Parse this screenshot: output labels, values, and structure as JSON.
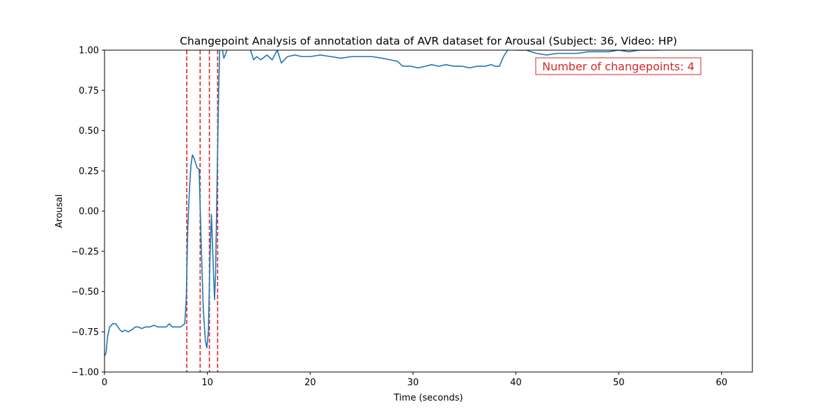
{
  "chart_data": {
    "type": "line",
    "title": "Changepoint Analysis of annotation data of AVR dataset for Arousal (Subject: 36, Video: HP)",
    "xlabel": "Time (seconds)",
    "ylabel": "Arousal",
    "xlim": [
      0,
      63
    ],
    "ylim": [
      -1.0,
      1.0
    ],
    "xticks": [
      0,
      10,
      20,
      30,
      40,
      50,
      60
    ],
    "xtick_labels": [
      "0",
      "10",
      "20",
      "30",
      "40",
      "50",
      "60"
    ],
    "yticks": [
      -1.0,
      -0.75,
      -0.5,
      -0.25,
      0.0,
      0.25,
      0.5,
      0.75,
      1.0
    ],
    "ytick_labels": [
      "−1.00",
      "−0.75",
      "−0.50",
      "−0.25",
      "0.00",
      "0.25",
      "0.50",
      "0.75",
      "1.00"
    ],
    "grid": false,
    "series": [
      {
        "color": "#1f77b4",
        "x": [
          0,
          0.15,
          0.3,
          0.5,
          0.8,
          1.1,
          1.4,
          1.7,
          2.0,
          2.3,
          2.6,
          3.0,
          3.3,
          3.6,
          4.0,
          4.4,
          4.8,
          5.2,
          5.6,
          6.0,
          6.3,
          6.6,
          7.0,
          7.4,
          7.8,
          7.95,
          8.1,
          8.25,
          8.4,
          8.55,
          8.7,
          9.0,
          9.2,
          9.4,
          9.6,
          9.8,
          9.95,
          10.1,
          10.25,
          10.4,
          10.55,
          10.7,
          10.8,
          10.95,
          11.1,
          11.2,
          11.4,
          11.6,
          11.8,
          12.0,
          12.2,
          12.4,
          12.7,
          13.0,
          13.5,
          14.0,
          14.5,
          14.8,
          15.2,
          15.8,
          16.3,
          16.8,
          17.2,
          17.8,
          18.5,
          19.2,
          20.0,
          21.0,
          22.0,
          23.0,
          24.0,
          25.0,
          26.0,
          27.0,
          27.8,
          28.5,
          29.0,
          29.8,
          30.5,
          31.2,
          31.8,
          32.5,
          33.2,
          34.0,
          34.8,
          35.5,
          36.2,
          37.0,
          37.6,
          38.0,
          38.4,
          38.8,
          39.2,
          39.6,
          40.0,
          41.0,
          42.0,
          43.0,
          44.0,
          45.0,
          46.0,
          47.0,
          48.0,
          49.0,
          50.0,
          51.0,
          52.0,
          53.0,
          53.8
        ],
        "y": [
          -0.9,
          -0.88,
          -0.78,
          -0.72,
          -0.7,
          -0.7,
          -0.73,
          -0.75,
          -0.74,
          -0.75,
          -0.74,
          -0.72,
          -0.72,
          -0.73,
          -0.72,
          -0.72,
          -0.71,
          -0.72,
          -0.72,
          -0.72,
          -0.7,
          -0.72,
          -0.72,
          -0.72,
          -0.7,
          -0.55,
          -0.1,
          0.12,
          0.28,
          0.35,
          0.33,
          0.27,
          0.26,
          -0.2,
          -0.6,
          -0.8,
          -0.85,
          -0.75,
          -0.3,
          -0.02,
          -0.3,
          -0.55,
          -0.4,
          0.2,
          0.75,
          1.0,
          1.03,
          0.95,
          0.98,
          1.02,
          1.05,
          1.05,
          1.05,
          1.05,
          1.05,
          1.04,
          0.94,
          0.96,
          0.94,
          0.97,
          0.94,
          1.0,
          0.92,
          0.96,
          0.97,
          0.96,
          0.96,
          0.97,
          0.96,
          0.95,
          0.96,
          0.96,
          0.96,
          0.95,
          0.94,
          0.93,
          0.9,
          0.9,
          0.89,
          0.9,
          0.91,
          0.9,
          0.91,
          0.9,
          0.9,
          0.89,
          0.9,
          0.9,
          0.91,
          0.9,
          0.9,
          0.96,
          1.0,
          1.02,
          1.0,
          1.0,
          0.98,
          0.97,
          0.98,
          0.98,
          0.98,
          0.99,
          0.99,
          0.99,
          1.0,
          0.99,
          1.0,
          1.0,
          1.0
        ]
      }
    ],
    "changepoints": [
      8.0,
      9.3,
      10.2,
      11.0
    ],
    "changepoint_color": "#d62728",
    "annotations": [
      {
        "text": "Number of changepoints: 4",
        "color": "#d62728"
      }
    ]
  }
}
